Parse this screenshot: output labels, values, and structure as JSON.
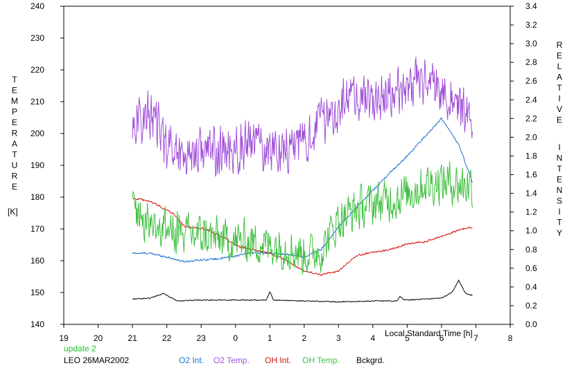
{
  "chart_data": {
    "type": "line",
    "xlabel": "Local Standard Time [h]",
    "ylabel_left_letters": [
      "T",
      "E",
      "M",
      "P",
      "E",
      "R",
      "A",
      "T",
      "U",
      "R",
      "E"
    ],
    "ylabel_left_unit": "[K]",
    "ylabel_right_word1": [
      "R",
      "E",
      "L",
      "A",
      "T",
      "I",
      "V",
      "E"
    ],
    "ylabel_right_word2": [
      "I",
      "N",
      "T",
      "E",
      "N",
      "S",
      "I",
      "T",
      "Y"
    ],
    "x_tick_labels": [
      "19",
      "20",
      "21",
      "22",
      "23",
      "0",
      "1",
      "2",
      "3",
      "4",
      "5",
      "6",
      "7",
      "8"
    ],
    "x_range_hours": [
      19,
      32
    ],
    "y_left_ticks": [
      140,
      150,
      160,
      170,
      180,
      190,
      200,
      210,
      220,
      230,
      240
    ],
    "y_left_range": [
      140,
      240
    ],
    "y_right_ticks": [
      "0.0",
      "0.2",
      "0.4",
      "0.6",
      "0.8",
      "1.0",
      "1.2",
      "1.4",
      "1.6",
      "1.8",
      "2.0",
      "2.2",
      "2.4",
      "2.6",
      "2.8",
      "3.0",
      "3.2",
      "3.4"
    ],
    "y_right_range": [
      0.0,
      3.4
    ],
    "grid": false,
    "series": [
      {
        "name": "O2 Int.",
        "axis": "right",
        "color": "#1e6fd0",
        "noise": 0.012,
        "x": [
          21.0,
          21.5,
          22.0,
          22.5,
          23.0,
          23.5,
          24.0,
          24.5,
          25.0,
          25.5,
          26.0,
          26.5,
          27.0,
          27.5,
          28.0,
          28.5,
          29.0,
          29.5,
          30.0,
          30.5,
          30.9
        ],
        "y": [
          0.76,
          0.76,
          0.72,
          0.67,
          0.69,
          0.7,
          0.73,
          0.77,
          0.76,
          0.75,
          0.72,
          0.8,
          1.04,
          1.24,
          1.43,
          1.62,
          1.8,
          2.0,
          2.2,
          1.92,
          1.52
        ]
      },
      {
        "name": "O2 Temp.",
        "axis": "left",
        "color": "#a050d8",
        "noise": 9,
        "x": [
          21.0,
          21.5,
          22.0,
          22.5,
          23.0,
          23.5,
          24.0,
          24.5,
          25.0,
          25.5,
          26.0,
          26.5,
          27.0,
          27.5,
          28.0,
          28.5,
          29.0,
          29.5,
          30.0,
          30.5,
          30.9
        ],
        "y": [
          203,
          206,
          197,
          193,
          195,
          194,
          195,
          197,
          195,
          196,
          197,
          204,
          208,
          212,
          210,
          212,
          215,
          217,
          214,
          208,
          203
        ]
      },
      {
        "name": "OH Int.",
        "axis": "right",
        "color": "#d01010",
        "noise": 0.012,
        "x": [
          21.0,
          21.3,
          21.6,
          21.9,
          22.2,
          22.5,
          22.8,
          23.1,
          23.4,
          23.7,
          24.0,
          24.5,
          25.0,
          25.5,
          26.0,
          26.5,
          27.0,
          27.5,
          28.0,
          28.5,
          29.0,
          29.5,
          30.0,
          30.5,
          30.9
        ],
        "y": [
          1.35,
          1.33,
          1.3,
          1.24,
          1.18,
          1.05,
          1.03,
          1.02,
          0.97,
          0.92,
          0.84,
          0.8,
          0.76,
          0.68,
          0.57,
          0.53,
          0.57,
          0.73,
          0.77,
          0.8,
          0.86,
          0.88,
          0.94,
          1.01,
          1.04
        ]
      },
      {
        "name": "OH Temp.",
        "axis": "left",
        "color": "#40c040",
        "noise": 8,
        "x": [
          21.0,
          21.5,
          22.0,
          22.5,
          23.0,
          23.5,
          24.0,
          24.5,
          25.0,
          25.5,
          26.0,
          26.5,
          27.0,
          27.5,
          28.0,
          28.5,
          29.0,
          29.5,
          30.0,
          30.5,
          30.9
        ],
        "y": [
          177,
          172,
          170,
          168,
          168,
          167,
          166,
          166,
          165,
          164,
          162,
          163,
          173,
          176,
          178,
          179,
          181,
          184,
          185,
          184,
          184
        ]
      },
      {
        "name": "Bckgrd.",
        "axis": "right",
        "color": "#000000",
        "noise": 0.006,
        "x": [
          21.0,
          21.5,
          21.9,
          22.3,
          23.0,
          24.0,
          24.9,
          25.0,
          25.1,
          26.0,
          27.0,
          28.0,
          28.7,
          28.8,
          28.9,
          29.5,
          30.0,
          30.3,
          30.5,
          30.7,
          30.9
        ],
        "y": [
          0.27,
          0.28,
          0.33,
          0.25,
          0.26,
          0.26,
          0.26,
          0.35,
          0.26,
          0.25,
          0.24,
          0.25,
          0.25,
          0.3,
          0.26,
          0.27,
          0.28,
          0.34,
          0.47,
          0.33,
          0.31
        ]
      }
    ]
  },
  "footer": {
    "update_note": "update 2",
    "station_date": "LEO 26MAR2002"
  },
  "legend": {
    "o2_int": "O2 Int.",
    "o2_temp": "O2 Temp.",
    "oh_int": "OH Int.",
    "oh_temp": "OH Temp.",
    "bckgrd": "Bckgrd."
  },
  "colors": {
    "o2_int": "#1e6fd0",
    "o2_temp": "#a050d8",
    "oh_int": "#d01010",
    "oh_temp": "#40c040",
    "bckgrd": "#000000",
    "update_note": "#20c020"
  }
}
